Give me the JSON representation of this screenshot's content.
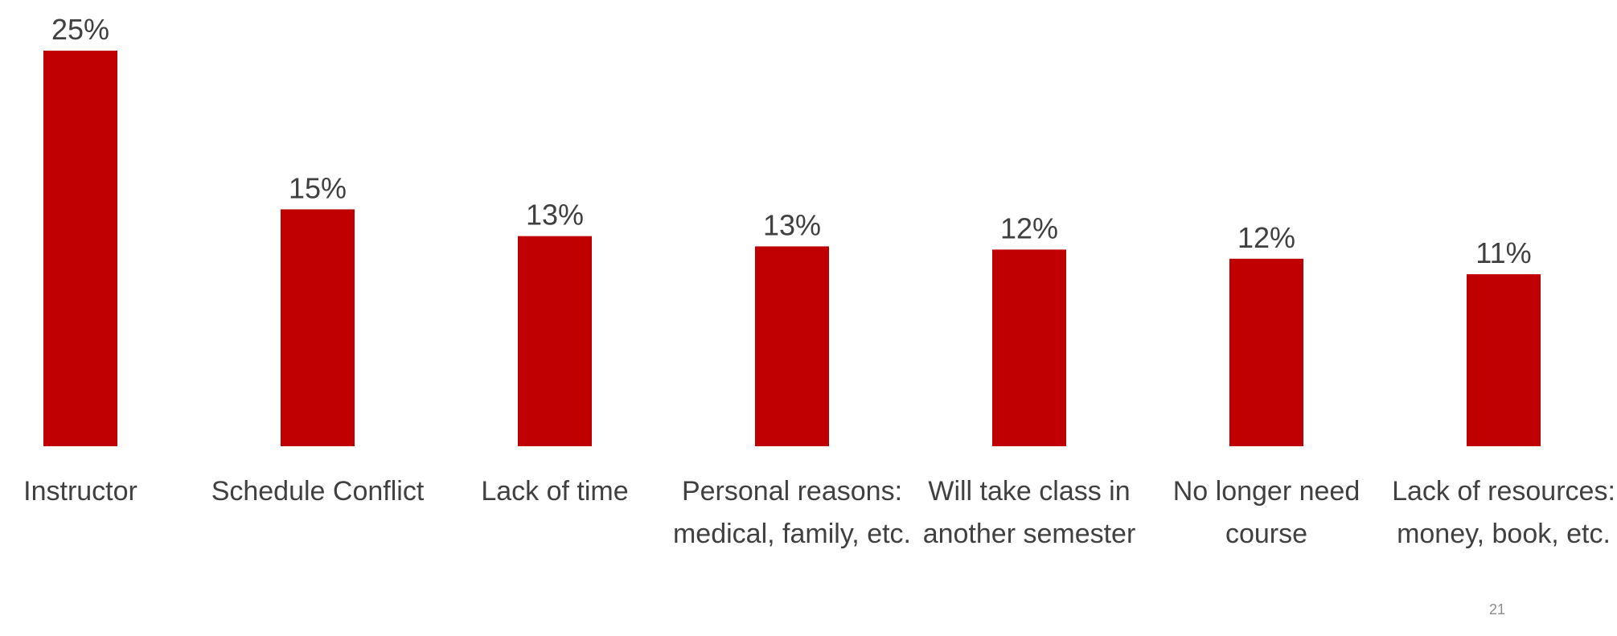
{
  "chart_data": {
    "type": "bar",
    "categories": [
      "Instructor",
      "Schedule Conflict",
      "Lack of time",
      "Personal reasons: medical, family, etc.",
      "Will take class in another semester",
      "No longer need course",
      "Lack of resources: money, book, etc."
    ],
    "values": [
      25,
      14.97,
      13.28,
      12.63,
      12.43,
      11.85,
      10.87
    ],
    "value_labels": [
      "25%",
      "15%",
      "13%",
      "13%",
      "12%",
      "12%",
      "11%"
    ],
    "color": "#c00000",
    "ylim": [
      0,
      25
    ]
  },
  "slide_number": "21"
}
